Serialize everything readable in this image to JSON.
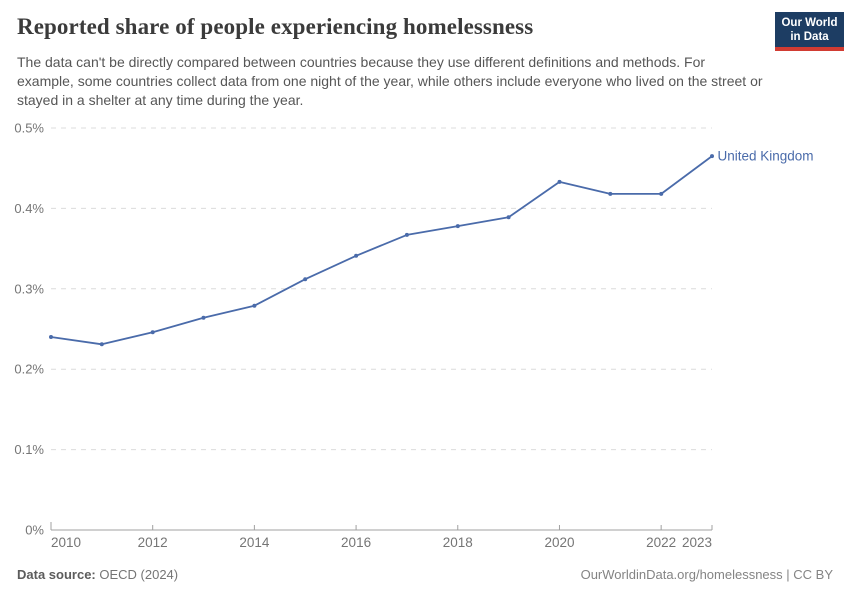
{
  "header": {
    "title": "Reported share of people experiencing homelessness",
    "subtitle": "The data can't be directly compared between countries because they use different definitions and methods. For example, some countries collect data from one night of the year, while others include everyone who lived on the street or stayed in a shelter at any time during the year.",
    "logo": {
      "line1": "Our World",
      "line2": "in Data",
      "bg_color": "#1d3d63",
      "stripe_color": "#d13b32",
      "text_color": "#ffffff"
    }
  },
  "chart_data": {
    "type": "line",
    "title": "Reported share of people experiencing homelessness",
    "xlabel": "",
    "ylabel": "",
    "xlim": [
      2010,
      2023
    ],
    "ylim": [
      0,
      0.5
    ],
    "grid": "horizontal-dashed",
    "legend_position": "end-of-line",
    "xticks": [
      2010,
      2012,
      2014,
      2016,
      2018,
      2020,
      2022,
      2023
    ],
    "yticks": [
      0,
      0.1,
      0.2,
      0.3,
      0.4,
      0.5
    ],
    "ytick_labels": [
      "0%",
      "0.1%",
      "0.2%",
      "0.3%",
      "0.4%",
      "0.5%"
    ],
    "series": [
      {
        "name": "United Kingdom",
        "color": "#4a6baa",
        "unit": "%",
        "x": [
          2010,
          2011,
          2012,
          2013,
          2014,
          2015,
          2016,
          2017,
          2018,
          2019,
          2020,
          2021,
          2022,
          2023
        ],
        "values": [
          0.24,
          0.231,
          0.246,
          0.264,
          0.279,
          0.312,
          0.341,
          0.367,
          0.378,
          0.389,
          0.433,
          0.418,
          0.418,
          0.465
        ]
      }
    ],
    "colors": {
      "gridline": "#dcdcdc",
      "axis": "#a0a0a0",
      "tick_label": "#757575"
    }
  },
  "footer": {
    "source_label": "Data source:",
    "source_value": " OECD (2024)",
    "attribution": "OurWorldinData.org/homelessness | CC BY"
  }
}
